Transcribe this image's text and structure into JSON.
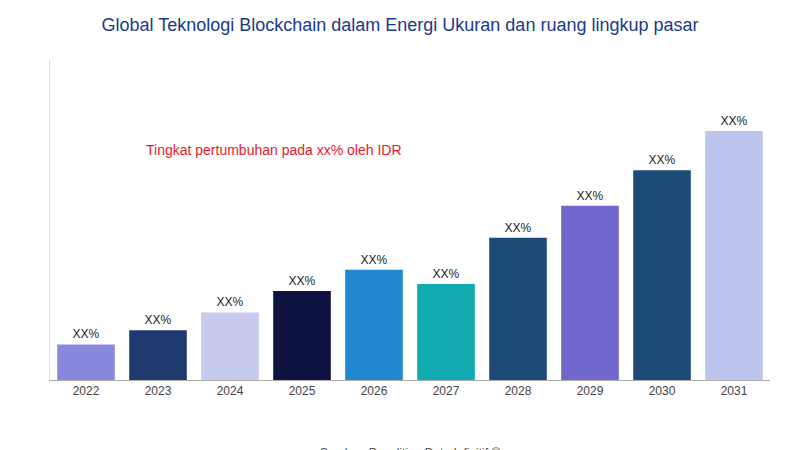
{
  "chart_data": {
    "type": "bar",
    "title": "Global Teknologi Blockchain dalam Energi Ukuran dan ruang lingkup pasar",
    "annotation": "Tingkat pertumbuhan pada xx% oleh IDR",
    "source": "Sumber: Penelitian Data Infinitif ©",
    "categories": [
      "2022",
      "2023",
      "2024",
      "2025",
      "2026",
      "2027",
      "2028",
      "2029",
      "2030",
      "2031"
    ],
    "values": [
      10,
      14,
      19,
      25,
      31,
      27,
      40,
      49,
      59,
      70
    ],
    "value_labels": [
      "XX%",
      "XX%",
      "XX%",
      "XX%",
      "XX%",
      "XX%",
      "XX%",
      "XX%",
      "XX%",
      "XX%"
    ],
    "colors": [
      "#8888dd",
      "#1e3a6e",
      "#c5caee",
      "#0d1240",
      "#2288d0",
      "#10aab0",
      "#1e4a78",
      "#7068cc",
      "#1e4a78",
      "#bdc5ee"
    ],
    "title_color": "#1a3a8a",
    "annotation_color": "#e8192c",
    "ylim": [
      0,
      90
    ],
    "grid": false,
    "tick_labels": "x"
  }
}
